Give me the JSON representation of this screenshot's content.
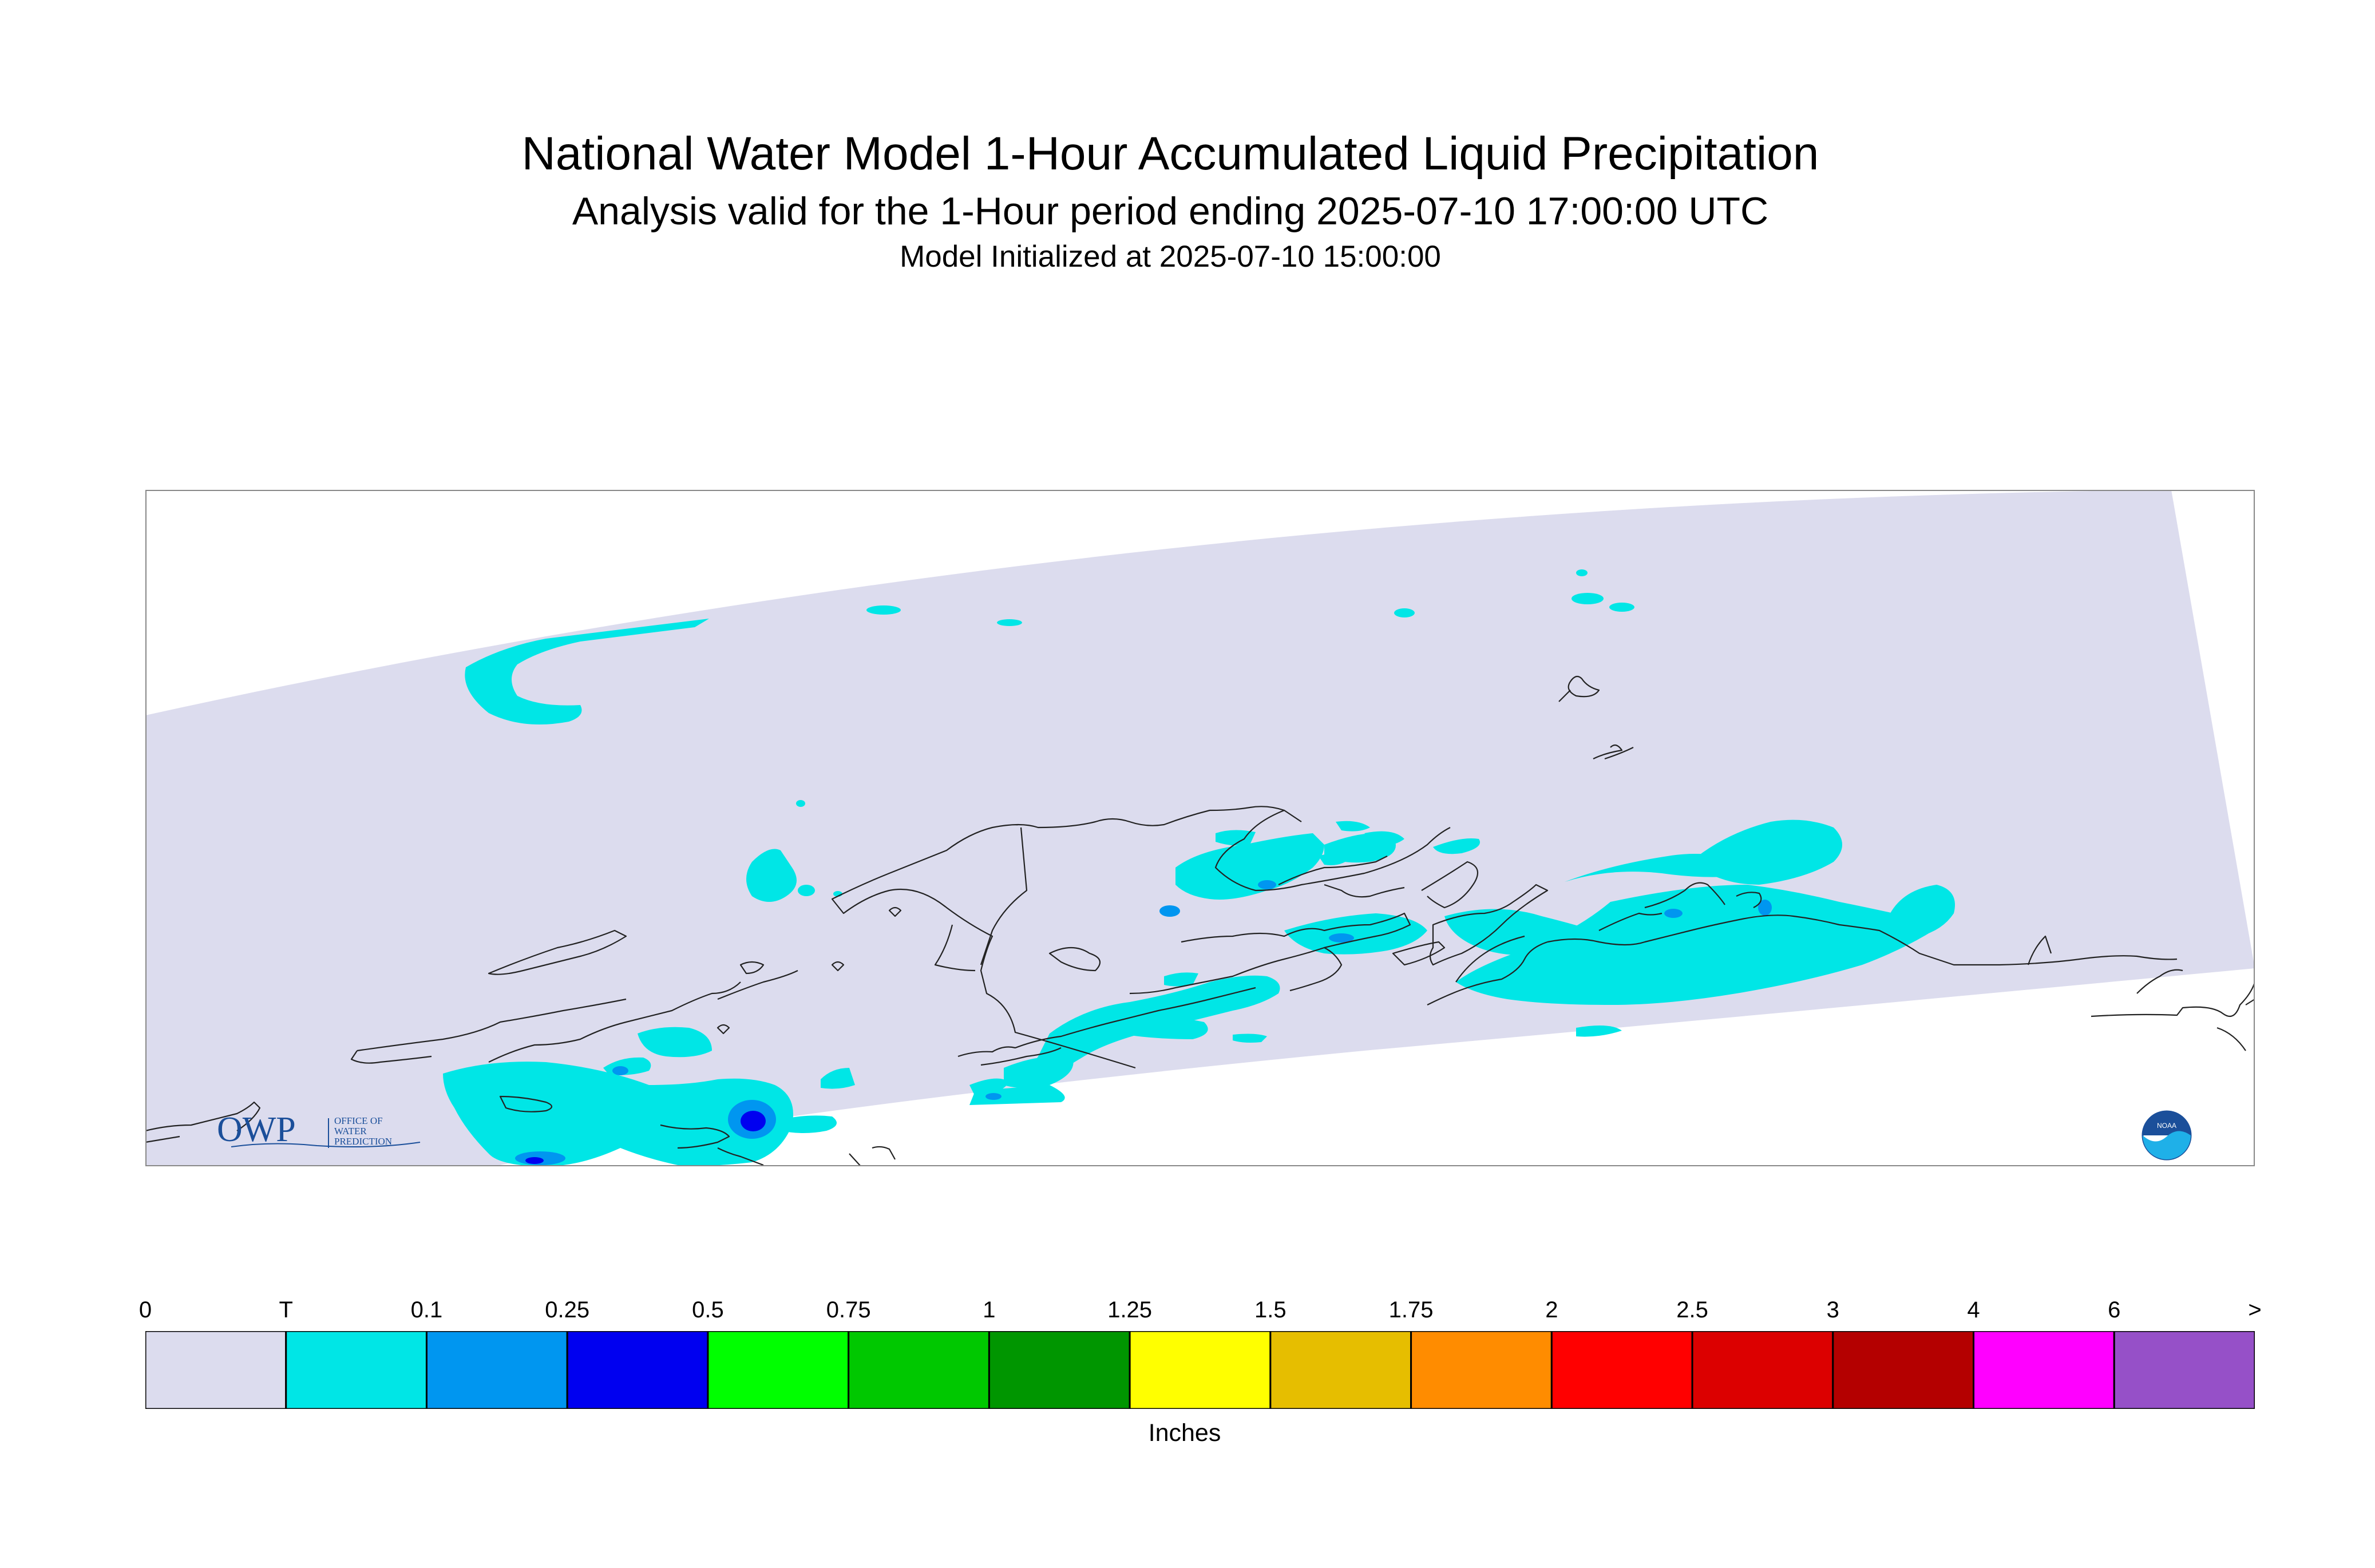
{
  "titles": {
    "main": "National Water Model 1-Hour Accumulated Liquid Precipitation",
    "sub": "Analysis valid for the 1-Hour period ending 2025-07-10 17:00:00 UTC",
    "init": "Model Initialized at 2025-07-10 15:00:00"
  },
  "logos": {
    "owp_text": "OWP",
    "owp_sub": [
      "OFFICE OF",
      "WATER",
      "PREDICTION"
    ],
    "noaa_text": "NOAA"
  },
  "colors": {
    "domain": "#dcdcee",
    "coast": "#222222",
    "frame": "#888888"
  },
  "legend": {
    "unit_label": "Inches",
    "ticks": [
      "0",
      "T",
      "0.1",
      "0.25",
      "0.5",
      "0.75",
      "1",
      "1.25",
      "1.5",
      "1.75",
      "2",
      "2.5",
      "3",
      "4",
      "6",
      ">"
    ],
    "bins": [
      {
        "label": "0-T",
        "color": "#dcdcee"
      },
      {
        "label": "T-0.1",
        "color": "#00e6e6"
      },
      {
        "label": "0.1-0.25",
        "color": "#0096f0"
      },
      {
        "label": "0.25-0.5",
        "color": "#0000f0"
      },
      {
        "label": "0.5-0.75",
        "color": "#00ff00"
      },
      {
        "label": "0.75-1",
        "color": "#00c800"
      },
      {
        "label": "1-1.25",
        "color": "#009600"
      },
      {
        "label": "1.25-1.5",
        "color": "#ffff00"
      },
      {
        "label": "1.5-1.75",
        "color": "#e6be00"
      },
      {
        "label": "1.75-2",
        "color": "#ff8c00"
      },
      {
        "label": "2-2.5",
        "color": "#ff0000"
      },
      {
        "label": "2.5-3",
        "color": "#dc0000"
      },
      {
        "label": "3-4",
        "color": "#b40000"
      },
      {
        "label": "4-6",
        "color": "#ff00ff"
      },
      {
        "label": "6+",
        "color": "#9650c8"
      }
    ]
  }
}
